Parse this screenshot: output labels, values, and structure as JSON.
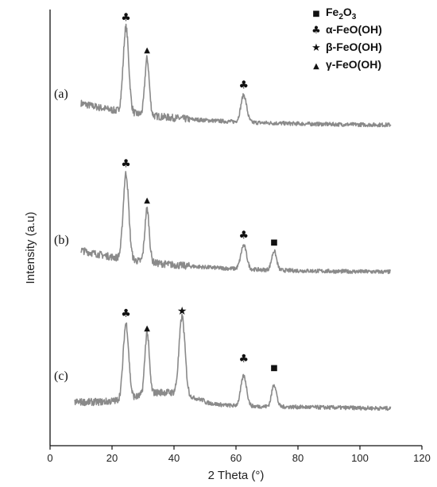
{
  "chart_data": {
    "type": "line",
    "xlabel": "2 Theta (°)",
    "ylabel": "Intensity (a.u)",
    "xlim": [
      0,
      120
    ],
    "xticks": [
      "0",
      "20",
      "40",
      "60",
      "80",
      "100",
      "120"
    ],
    "grid": false,
    "legend_position": "top-right",
    "line_color": "#8a8a8a",
    "legend": [
      {
        "symbol": "square",
        "glyph": "■",
        "label": "Fe",
        "sub1": "2",
        "mid": "O",
        "sub2": "3"
      },
      {
        "symbol": "club",
        "glyph": "♣",
        "label": "α-FeO(OH)"
      },
      {
        "symbol": "star",
        "glyph": "★",
        "label": "β-FeO(OH)"
      },
      {
        "symbol": "triangle",
        "glyph": "▲",
        "label": "γ-FeO(OH)"
      }
    ],
    "series": [
      {
        "name": "(a)",
        "x_range": [
          10,
          110
        ],
        "baseline": "low-decay",
        "peaks": [
          {
            "x": 24.5,
            "marker": "club"
          },
          {
            "x": 31.3,
            "marker": "triangle"
          },
          {
            "x": 62.5,
            "marker": "club"
          }
        ]
      },
      {
        "name": "(b)",
        "x_range": [
          10,
          110
        ],
        "baseline": "low-decay",
        "peaks": [
          {
            "x": 24.5,
            "marker": "club"
          },
          {
            "x": 31.3,
            "marker": "triangle"
          },
          {
            "x": 62.5,
            "marker": "club"
          },
          {
            "x": 72.3,
            "marker": "square"
          }
        ]
      },
      {
        "name": "(c)",
        "x_range": [
          8,
          110
        ],
        "baseline": "hump",
        "peaks": [
          {
            "x": 24.5,
            "marker": "club"
          },
          {
            "x": 31.3,
            "marker": "triangle"
          },
          {
            "x": 42.6,
            "marker": "star"
          },
          {
            "x": 62.5,
            "marker": "club"
          },
          {
            "x": 72.3,
            "marker": "square"
          }
        ]
      }
    ]
  }
}
